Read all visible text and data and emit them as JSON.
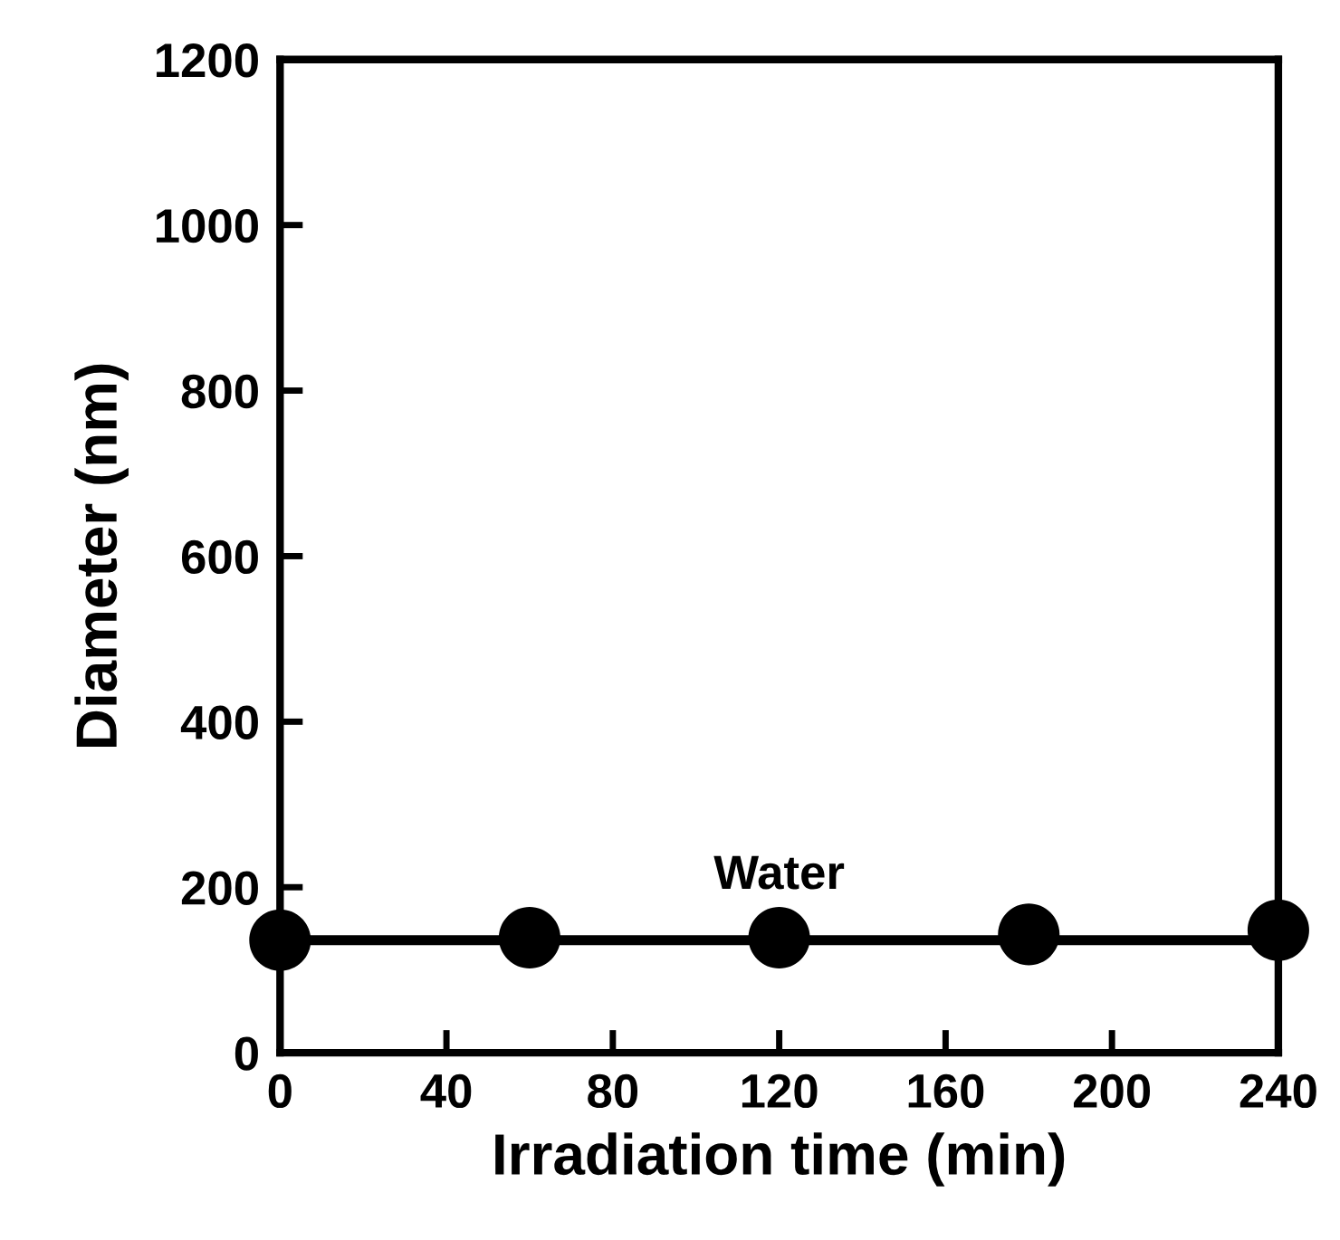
{
  "chart_data": {
    "type": "scatter",
    "xlabel": "Irradiation time (min)",
    "ylabel": "Diameter (nm)",
    "x": [
      0,
      60,
      120,
      180,
      240
    ],
    "series": [
      {
        "type": "line",
        "color": "#000000",
        "x": [
          0,
          240
        ],
        "values": [
          136,
          136
        ],
        "marker": "none"
      },
      {
        "color": "#000000",
        "values": [
          136,
          139,
          139,
          143,
          148
        ],
        "marker": "circle"
      }
    ],
    "annotations": [
      "Water"
    ],
    "xlim": [
      0,
      240
    ],
    "xticks": [
      0,
      40,
      80,
      120,
      160,
      200,
      240
    ],
    "ylim": [
      0,
      1200
    ],
    "yticks": [
      0,
      200,
      400,
      600,
      800,
      1000,
      1200
    ],
    "grid": false,
    "legend": false
  }
}
